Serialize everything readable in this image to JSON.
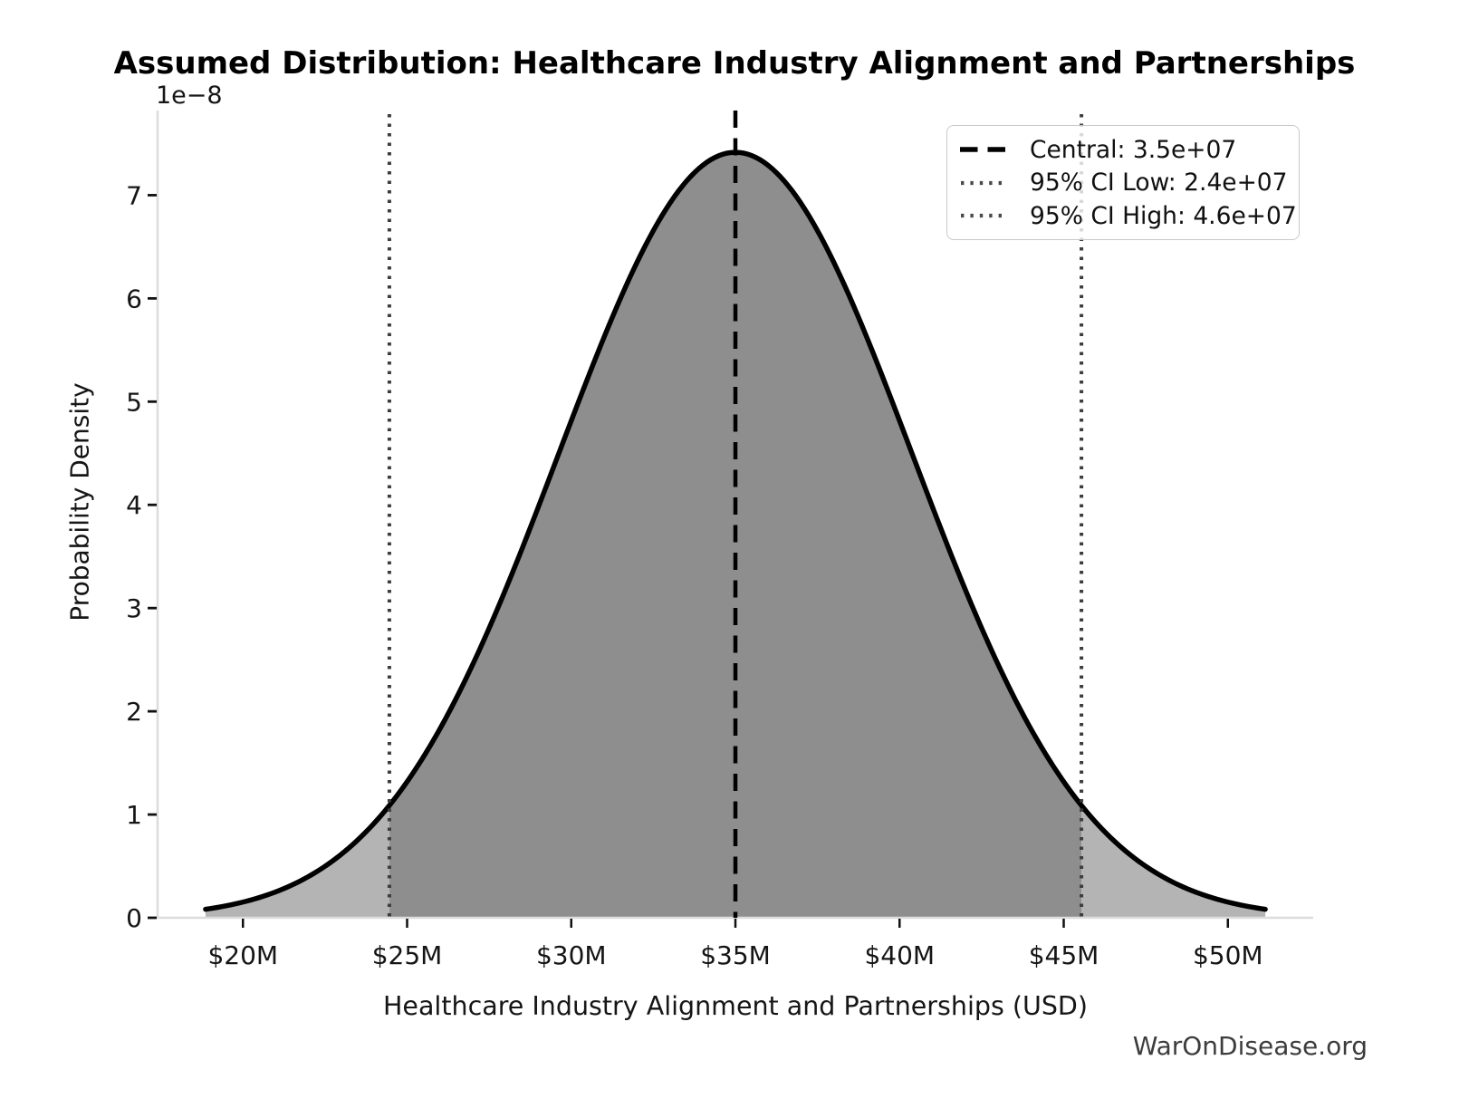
{
  "page": {
    "watermark": "WarOnDisease.org"
  },
  "chart_data": {
    "type": "area",
    "title": "Assumed Distribution: Healthcare Industry Alignment and Partnerships",
    "xlabel": "Healthcare Industry Alignment and Partnerships (USD)",
    "ylabel": "Probability Density",
    "y_scale_offset_label": "1e−8",
    "distribution": {
      "kind": "normal",
      "mean": 35000000,
      "sigma": 5380000,
      "curve_span_sigmas": 3,
      "peak_density": 7.42e-08
    },
    "markers": {
      "central": {
        "value": 35000000,
        "style": "dashed"
      },
      "ci_low": {
        "value": 24460000,
        "style": "dotted"
      },
      "ci_high": {
        "value": 45540000,
        "style": "dotted"
      }
    },
    "legend": {
      "position": "upper right",
      "items": [
        {
          "label": "Central: 3.5e+07",
          "line_style": "dashed",
          "color": "#000000"
        },
        {
          "label": "95% CI Low: 2.4e+07",
          "line_style": "dotted",
          "color": "#4a4a4a"
        },
        {
          "label": "95% CI High: 4.6e+07",
          "line_style": "dotted",
          "color": "#4a4a4a"
        }
      ]
    },
    "x_ticks": {
      "values": [
        20000000,
        25000000,
        30000000,
        35000000,
        40000000,
        45000000,
        50000000
      ],
      "labels": [
        "$20M",
        "$25M",
        "$30M",
        "$35M",
        "$40M",
        "$45M",
        "$50M"
      ]
    },
    "y_ticks": {
      "values": [
        0,
        1,
        2,
        3,
        4,
        5,
        6,
        7
      ],
      "labels": [
        "0",
        "1",
        "2",
        "3",
        "4",
        "5",
        "6",
        "7"
      ],
      "unit_exponent": -8
    },
    "xlim": [
      17400000,
      52600000
    ],
    "ylim": [
      0,
      7.82e-08
    ],
    "grid": false,
    "colors": {
      "curve": "#000000",
      "fill_ci_region": "#8e8e8e",
      "fill_tails": "#b4b4b4",
      "central_line": "#000000",
      "ci_line": "#3d3d3d",
      "spine": "#dcdcdc",
      "tick_mark": "#101010",
      "tick_text": "#151515",
      "watermark_text": "#3d3d3d"
    }
  }
}
